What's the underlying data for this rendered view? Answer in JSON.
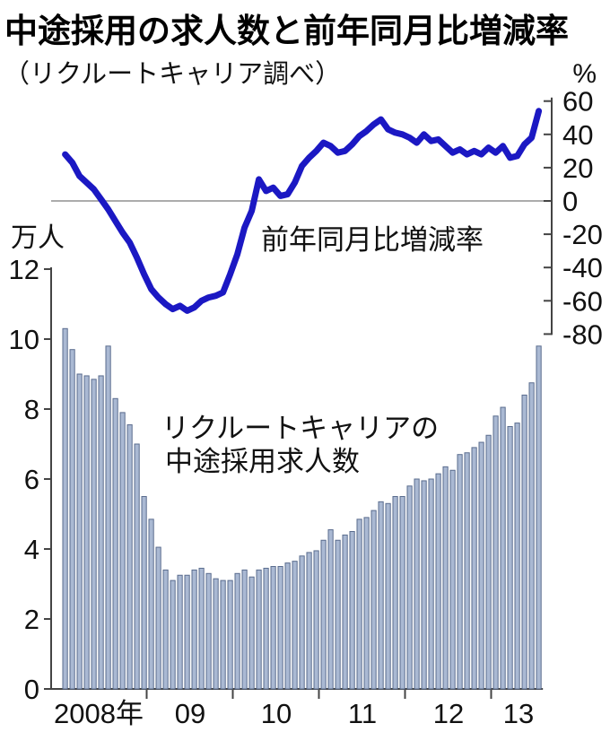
{
  "header": {
    "title": "中途採用の求人数と前年同月比増減率",
    "subtitle": "（リクルートキャリア調べ）"
  },
  "chart_data": {
    "type": "bar+line",
    "unit_left": "万人",
    "unit_right": "%",
    "left_axis": {
      "ticks": [
        12,
        10,
        8,
        6,
        4,
        2,
        0
      ],
      "range": [
        0,
        12
      ],
      "label": "万人"
    },
    "right_axis": {
      "ticks": [
        60,
        40,
        20,
        0,
        -20,
        -40,
        -60,
        -80
      ],
      "range": [
        -80,
        60
      ],
      "label": "%"
    },
    "x_year_labels": [
      "2008年",
      "09",
      "10",
      "11",
      "12",
      "13"
    ],
    "categories": [
      "2008-01",
      "2008-02",
      "2008-03",
      "2008-04",
      "2008-05",
      "2008-06",
      "2008-07",
      "2008-08",
      "2008-09",
      "2008-10",
      "2008-11",
      "2008-12",
      "2009-01",
      "2009-02",
      "2009-03",
      "2009-04",
      "2009-05",
      "2009-06",
      "2009-07",
      "2009-08",
      "2009-09",
      "2009-10",
      "2009-11",
      "2009-12",
      "2010-01",
      "2010-02",
      "2010-03",
      "2010-04",
      "2010-05",
      "2010-06",
      "2010-07",
      "2010-08",
      "2010-09",
      "2010-10",
      "2010-11",
      "2010-12",
      "2011-01",
      "2011-02",
      "2011-03",
      "2011-04",
      "2011-05",
      "2011-06",
      "2011-07",
      "2011-08",
      "2011-09",
      "2011-10",
      "2011-11",
      "2011-12",
      "2012-01",
      "2012-02",
      "2012-03",
      "2012-04",
      "2012-05",
      "2012-06",
      "2012-07",
      "2012-08",
      "2012-09",
      "2012-10",
      "2012-11",
      "2012-12",
      "2013-01",
      "2013-02",
      "2013-03",
      "2013-04",
      "2013-05",
      "2013-06",
      "2013-07"
    ],
    "series": [
      {
        "name": "リクルートキャリアの中途採用求人数",
        "type": "bar",
        "unit": "万人",
        "values": [
          10.3,
          9.7,
          9.0,
          8.95,
          8.85,
          8.95,
          9.8,
          8.3,
          7.9,
          7.55,
          7.0,
          5.5,
          4.85,
          4.05,
          3.4,
          3.1,
          3.25,
          3.25,
          3.4,
          3.45,
          3.3,
          3.15,
          3.1,
          3.1,
          3.3,
          3.4,
          3.2,
          3.4,
          3.45,
          3.5,
          3.5,
          3.6,
          3.65,
          3.8,
          3.9,
          3.95,
          4.25,
          4.55,
          4.25,
          4.4,
          4.5,
          4.85,
          4.9,
          5.1,
          5.35,
          5.3,
          5.5,
          5.5,
          5.8,
          6.0,
          5.95,
          6.0,
          6.15,
          6.35,
          6.25,
          6.7,
          6.75,
          6.9,
          7.05,
          7.25,
          7.8,
          8.05,
          7.5,
          7.6,
          8.4,
          8.75,
          9.8
        ]
      },
      {
        "name": "前年同月比増減率",
        "type": "line",
        "unit": "%",
        "values": [
          28,
          23,
          15,
          11,
          7,
          1,
          -5,
          -12,
          -19,
          -25,
          -34,
          -44,
          -53,
          -58,
          -62,
          -65,
          -63,
          -66,
          -64,
          -60,
          -58,
          -57,
          -55,
          -44,
          -32,
          -16,
          -6,
          13,
          6,
          8,
          3,
          4,
          11,
          21,
          26,
          30,
          35,
          33,
          29,
          30,
          34,
          39,
          42,
          46,
          49,
          43,
          41,
          40,
          38,
          35,
          40,
          36,
          37,
          33,
          29,
          31,
          28,
          30,
          28,
          32,
          29,
          33,
          26,
          27,
          34,
          38,
          54
        ]
      }
    ],
    "annotations": {
      "line_label": "前年同月比増減率",
      "bar_label_line1": "リクルートキャリアの",
      "bar_label_line2": "中途採用求人数"
    },
    "colors": {
      "bar_fill": "#aab9d3",
      "bar_border": "#5a6c8e",
      "line": "#1b18c3",
      "zero_line": "#909090",
      "axis": "#444444"
    }
  }
}
